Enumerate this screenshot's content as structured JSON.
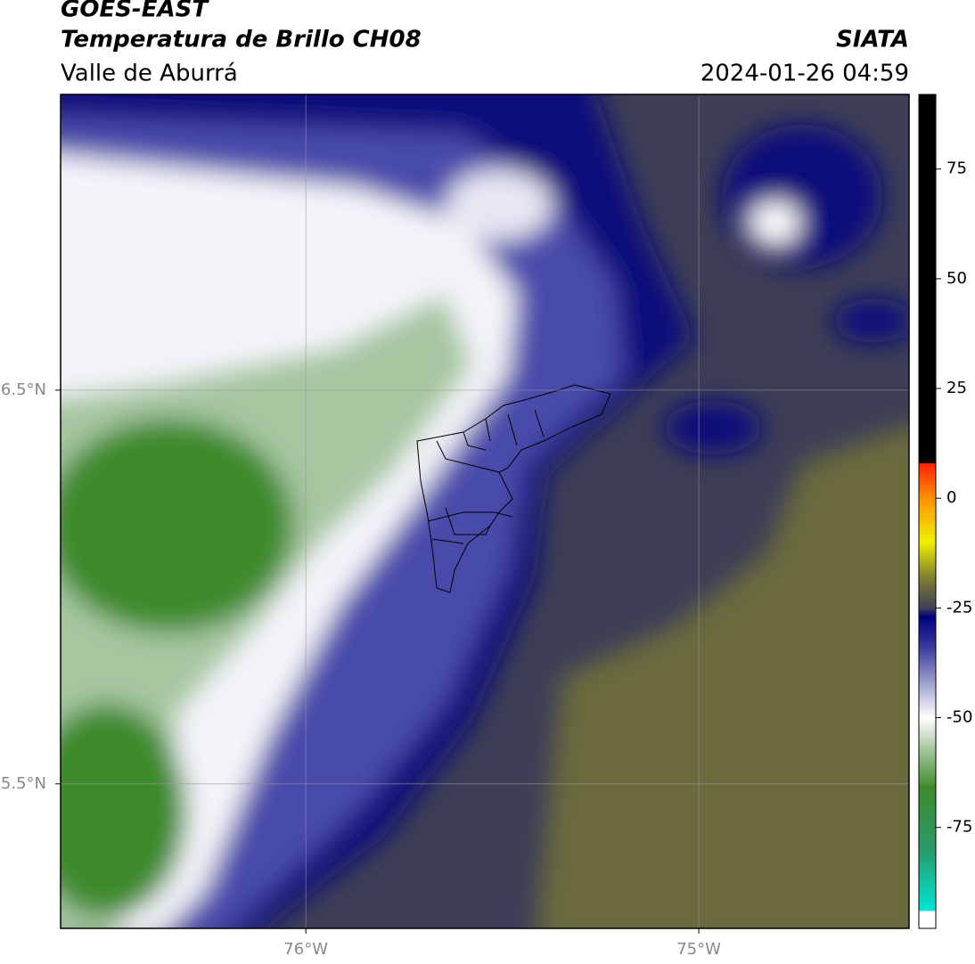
{
  "header": {
    "title": "GOES-EAST",
    "subtitle": "Temperatura de Brillo CH08",
    "region": "Valle de Aburrá",
    "source": "SIATA",
    "datetime": "2024-01-26 04:59"
  },
  "map": {
    "xlim": [
      -76.624,
      -74.465
    ],
    "ylim": [
      5.133,
      7.251
    ],
    "xticks": [
      {
        "value": -76,
        "label": "76°W"
      },
      {
        "value": -75,
        "label": "75°W"
      }
    ],
    "yticks": [
      {
        "value": 6.5,
        "label": "6.5°N"
      },
      {
        "value": 5.5,
        "label": "5.5°N"
      }
    ],
    "grid": true
  },
  "colorbar": {
    "ylim": [
      -98,
      92
    ],
    "yticks": [
      75,
      50,
      25,
      0,
      -25,
      -50,
      -75
    ],
    "stops": [
      {
        "value": -98,
        "color": "#ffffff"
      },
      {
        "value": -94,
        "color": "#ffffff"
      },
      {
        "value": -94,
        "color": "#00e5d5"
      },
      {
        "value": -80,
        "color": "#2a9a6a"
      },
      {
        "value": -66,
        "color": "#3e8a2a"
      },
      {
        "value": -57,
        "color": "#a8c8a0"
      },
      {
        "value": -50,
        "color": "#ffffff"
      },
      {
        "value": -44,
        "color": "#b8b8dc"
      },
      {
        "value": -34,
        "color": "#3a3ca0"
      },
      {
        "value": -27,
        "color": "#000080"
      },
      {
        "value": -25,
        "color": "#404058"
      },
      {
        "value": -18,
        "color": "#808030"
      },
      {
        "value": -10,
        "color": "#f0f000"
      },
      {
        "value": 0,
        "color": "#ff9000"
      },
      {
        "value": 8,
        "color": "#ff2000"
      },
      {
        "value": 8,
        "color": "#000000"
      },
      {
        "value": 92,
        "color": "#000000"
      }
    ]
  }
}
